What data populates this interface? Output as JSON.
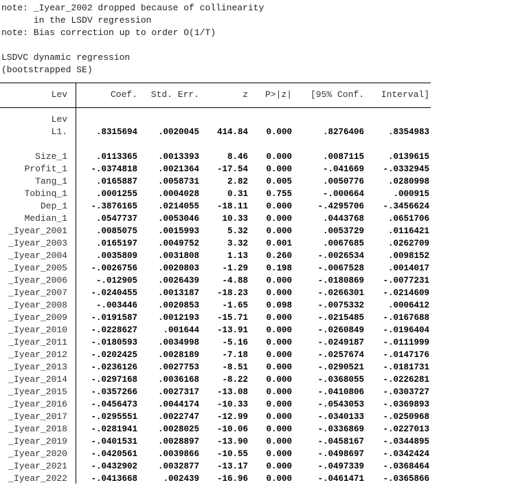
{
  "notes": [
    "note: _Iyear_2002 dropped because of collinearity",
    "      in the LSDV regression",
    "note: Bias correction up to order O(1/T)"
  ],
  "title": "LSDVC dynamic regression",
  "subtitle": "(bootstrapped SE)",
  "table": {
    "depvar": "Lev",
    "headers": [
      "Coef.",
      "Std. Err.",
      "z",
      "P>|z|",
      "[95% Conf.",
      "Interval]"
    ],
    "group_label": "Lev",
    "rows": [
      {
        "label": "L1.",
        "values": [
          ".8315694",
          ".0020045",
          "414.84",
          "0.000",
          ".8276406",
          ".8354983"
        ]
      },
      {
        "label": "Size_1",
        "values": [
          ".0113365",
          ".0013393",
          "8.46",
          "0.000",
          ".0087115",
          ".0139615"
        ]
      },
      {
        "label": "Profit_1",
        "values": [
          "-.0374818",
          ".0021364",
          "-17.54",
          "0.000",
          "-.041669",
          "-.0332945"
        ]
      },
      {
        "label": "Tang_1",
        "values": [
          ".0165887",
          ".0058731",
          "2.82",
          "0.005",
          ".0050776",
          ".0280998"
        ]
      },
      {
        "label": "Tobinq_1",
        "values": [
          ".0001255",
          ".0004028",
          "0.31",
          "0.755",
          "-.000664",
          ".000915"
        ]
      },
      {
        "label": "Dep_1",
        "values": [
          "-.3876165",
          ".0214055",
          "-18.11",
          "0.000",
          "-.4295706",
          "-.3456624"
        ]
      },
      {
        "label": "Median_1",
        "values": [
          ".0547737",
          ".0053046",
          "10.33",
          "0.000",
          ".0443768",
          ".0651706"
        ]
      },
      {
        "label": "_Iyear_2001",
        "values": [
          ".0085075",
          ".0015993",
          "5.32",
          "0.000",
          ".0053729",
          ".0116421"
        ]
      },
      {
        "label": "_Iyear_2003",
        "values": [
          ".0165197",
          ".0049752",
          "3.32",
          "0.001",
          ".0067685",
          ".0262709"
        ]
      },
      {
        "label": "_Iyear_2004",
        "values": [
          ".0035809",
          ".0031808",
          "1.13",
          "0.260",
          "-.0026534",
          ".0098152"
        ]
      },
      {
        "label": "_Iyear_2005",
        "values": [
          "-.0026756",
          ".0020803",
          "-1.29",
          "0.198",
          "-.0067528",
          ".0014017"
        ]
      },
      {
        "label": "_Iyear_2006",
        "values": [
          "-.012905",
          ".0026439",
          "-4.88",
          "0.000",
          "-.0180869",
          "-.0077231"
        ]
      },
      {
        "label": "_Iyear_2007",
        "values": [
          "-.0240455",
          ".0013187",
          "-18.23",
          "0.000",
          "-.0266301",
          "-.0214609"
        ]
      },
      {
        "label": "_Iyear_2008",
        "values": [
          "-.003446",
          ".0020853",
          "-1.65",
          "0.098",
          "-.0075332",
          ".0006412"
        ]
      },
      {
        "label": "_Iyear_2009",
        "values": [
          "-.0191587",
          ".0012193",
          "-15.71",
          "0.000",
          "-.0215485",
          "-.0167688"
        ]
      },
      {
        "label": "_Iyear_2010",
        "values": [
          "-.0228627",
          ".001644",
          "-13.91",
          "0.000",
          "-.0260849",
          "-.0196404"
        ]
      },
      {
        "label": "_Iyear_2011",
        "values": [
          "-.0180593",
          ".0034998",
          "-5.16",
          "0.000",
          "-.0249187",
          "-.0111999"
        ]
      },
      {
        "label": "_Iyear_2012",
        "values": [
          "-.0202425",
          ".0028189",
          "-7.18",
          "0.000",
          "-.0257674",
          "-.0147176"
        ]
      },
      {
        "label": "_Iyear_2013",
        "values": [
          "-.0236126",
          ".0027753",
          "-8.51",
          "0.000",
          "-.0290521",
          "-.0181731"
        ]
      },
      {
        "label": "_Iyear_2014",
        "values": [
          "-.0297168",
          ".0036168",
          "-8.22",
          "0.000",
          "-.0368055",
          "-.0226281"
        ]
      },
      {
        "label": "_Iyear_2015",
        "values": [
          "-.0357266",
          ".0027317",
          "-13.08",
          "0.000",
          "-.0410806",
          "-.0303727"
        ]
      },
      {
        "label": "_Iyear_2016",
        "values": [
          "-.0456473",
          ".0044174",
          "-10.33",
          "0.000",
          "-.0543053",
          "-.0369893"
        ]
      },
      {
        "label": "_Iyear_2017",
        "values": [
          "-.0295551",
          ".0022747",
          "-12.99",
          "0.000",
          "-.0340133",
          "-.0250968"
        ]
      },
      {
        "label": "_Iyear_2018",
        "values": [
          "-.0281941",
          ".0028025",
          "-10.06",
          "0.000",
          "-.0336869",
          "-.0227013"
        ]
      },
      {
        "label": "_Iyear_2019",
        "values": [
          "-.0401531",
          ".0028897",
          "-13.90",
          "0.000",
          "-.0458167",
          "-.0344895"
        ]
      },
      {
        "label": "_Iyear_2020",
        "values": [
          "-.0420561",
          ".0039866",
          "-10.55",
          "0.000",
          "-.0498697",
          "-.0342424"
        ]
      },
      {
        "label": "_Iyear_2021",
        "values": [
          "-.0432902",
          ".0032877",
          "-13.17",
          "0.000",
          "-.0497339",
          "-.0368464"
        ]
      },
      {
        "label": "_Iyear_2022",
        "values": [
          "-.0413668",
          ".002439",
          "-16.96",
          "0.000",
          "-.0461471",
          "-.0365866"
        ]
      }
    ]
  }
}
